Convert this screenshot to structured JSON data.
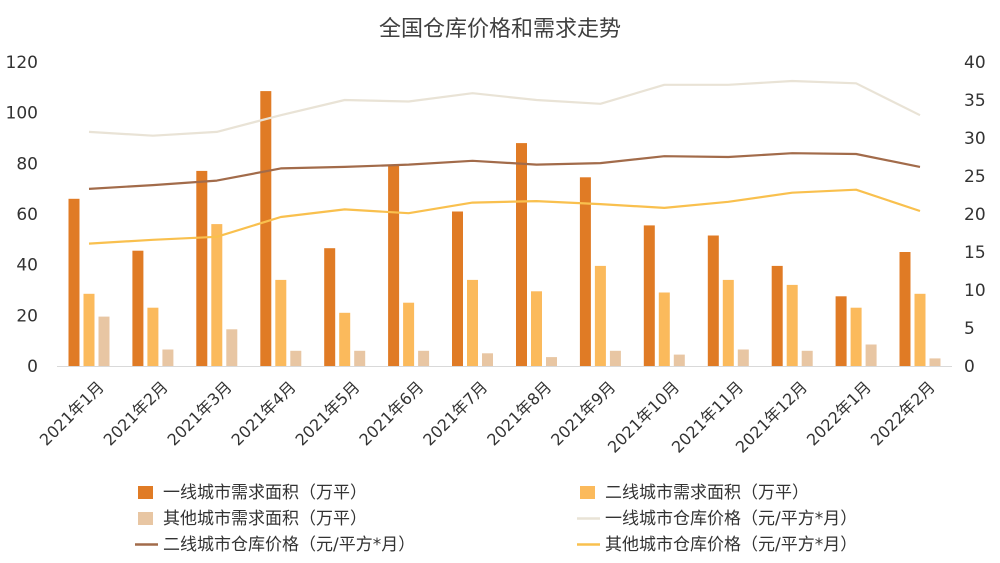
{
  "chart_data": {
    "type": "bar",
    "title": "全国仓库价格和需求走势",
    "categories": [
      "2021年1月",
      "2021年2月",
      "2021年3月",
      "2021年4月",
      "2021年5月",
      "2021年6月",
      "2021年7月",
      "2021年8月",
      "2021年9月",
      "2021年10月",
      "2021年11月",
      "2021年12月",
      "2022年1月",
      "2022年2月"
    ],
    "y_left": {
      "lim": [
        0,
        120
      ],
      "ticks": [
        "0",
        "20",
        "40",
        "60",
        "80",
        "100",
        "120"
      ]
    },
    "y_right": {
      "lim": [
        0,
        40
      ],
      "ticks": [
        "0",
        "5",
        "10",
        "15",
        "20",
        "25",
        "30",
        "35",
        "40"
      ]
    },
    "grid": false,
    "legend_position": "bottom",
    "series": [
      {
        "name": "一线城市需求面积（万平）",
        "kind": "bar",
        "axis": "left",
        "color": "#E07B25",
        "values": [
          66,
          45.5,
          77,
          108.5,
          46.5,
          79,
          61,
          88,
          74.5,
          55.5,
          51.5,
          39.5,
          27.5,
          45
        ]
      },
      {
        "name": "二线城市需求面积（万平）",
        "kind": "bar",
        "axis": "left",
        "color": "#FBBA5C",
        "values": [
          28.5,
          23,
          56,
          34,
          21,
          25,
          34,
          29.5,
          39.5,
          29,
          34,
          32,
          23,
          28.5
        ]
      },
      {
        "name": "其他城市需求面积（万平）",
        "kind": "bar",
        "axis": "left",
        "color": "#E8C6A3",
        "values": [
          19.5,
          6.5,
          14.5,
          6,
          6,
          6,
          5,
          3.5,
          6,
          4.5,
          6.5,
          6,
          8.5,
          3
        ]
      },
      {
        "name": "一线城市仓库价格（元/平方*月）",
        "kind": "line",
        "axis": "right",
        "color": "#E9E3D6",
        "values": [
          30.8,
          30.3,
          30.8,
          33.0,
          35.0,
          34.8,
          35.9,
          35.0,
          34.5,
          37.0,
          37.0,
          37.5,
          37.2,
          33.0
        ]
      },
      {
        "name": "二线城市仓库价格（元/平方*月）",
        "kind": "line",
        "axis": "right",
        "color": "#A26B4A",
        "values": [
          23.3,
          23.8,
          24.4,
          26.0,
          26.2,
          26.5,
          27.0,
          26.5,
          26.7,
          27.6,
          27.5,
          28.0,
          27.9,
          26.2
        ]
      },
      {
        "name": "其他城市仓库价格（元/平方*月）",
        "kind": "line",
        "axis": "right",
        "color": "#F9C04E",
        "values": [
          16.1,
          16.6,
          17.0,
          19.6,
          20.6,
          20.1,
          21.5,
          21.7,
          21.3,
          20.8,
          21.6,
          22.8,
          23.2,
          20.4
        ]
      }
    ]
  }
}
